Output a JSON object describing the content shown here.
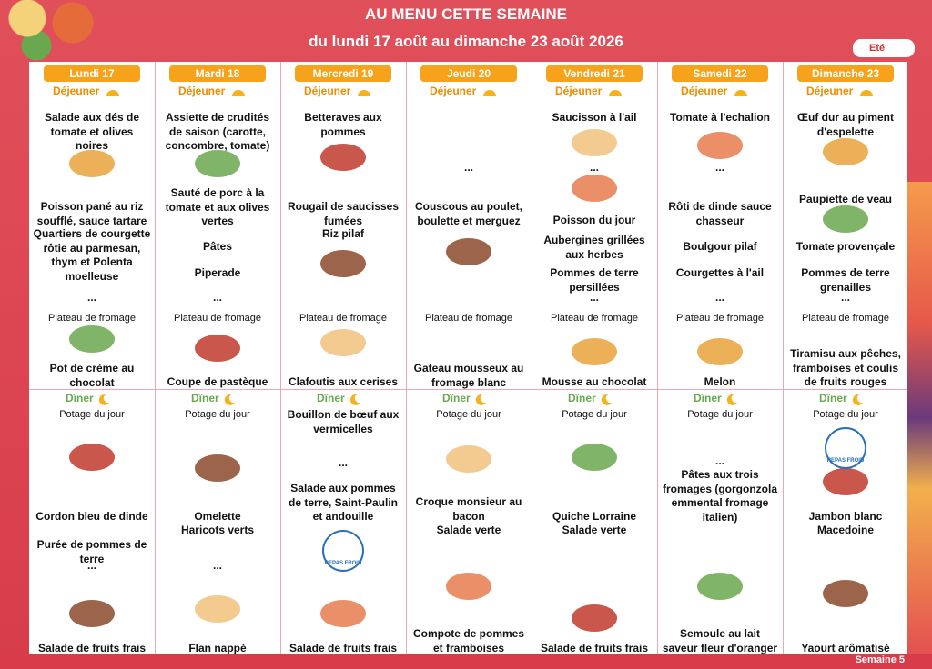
{
  "header": {
    "title": "AU MENU CETTE SEMAINE",
    "subtitle": "du lundi 17 août au dimanche 23 août 2026",
    "season": "Eté"
  },
  "badge": "REPAS FROID",
  "footer": "Semaine 5",
  "days": [
    {
      "name": "Lundi 17",
      "lunch": {
        "label": "Déjeuner",
        "items": [
          "Salade aux dés de tomate et olives noires",
          "Poisson pané au riz soufflé, sauce tartare",
          "Quartiers de courgette rôtie au parmesan, thym et Polenta moelleuse",
          "...",
          "Plateau de fromage",
          "Pot de crème au chocolat"
        ]
      },
      "dinner": {
        "label": "Dîner",
        "items": [
          "Potage du jour",
          "Cordon bleu de dinde",
          "Purée de pommes de terre",
          "...",
          "Salade de fruits frais"
        ]
      }
    },
    {
      "name": "Mardi 18",
      "lunch": {
        "label": "Déjeuner",
        "items": [
          "Assiette de crudités de saison (carotte, concombre, tomate)",
          "Sauté de porc à la tomate et aux olives vertes",
          "Pâtes",
          "Piperade",
          "...",
          "Plateau de fromage",
          "Coupe de pastèque"
        ]
      },
      "dinner": {
        "label": "Dîner",
        "items": [
          "Potage du jour",
          "Omelette",
          "Haricots verts",
          "...",
          "Flan nappé"
        ]
      }
    },
    {
      "name": "Mercredi 19",
      "lunch": {
        "label": "Déjeuner",
        "items": [
          "Betteraves aux pommes",
          "Rougail de saucisses fumées",
          "Riz pilaf",
          "Plateau de fromage",
          "Clafoutis aux cerises"
        ]
      },
      "dinner": {
        "label": "Dîner",
        "items": [
          "Bouillon de bœuf aux vermicelles",
          "...",
          "Salade aux pommes de terre, Saint-Paulin et andouille",
          "Salade de fruits frais"
        ]
      }
    },
    {
      "name": "Jeudi 20",
      "lunch": {
        "label": "Déjeuner",
        "items": [
          "...",
          "Couscous au poulet, boulette et merguez",
          "Plateau de fromage",
          "Gateau mousseux au fromage blanc"
        ]
      },
      "dinner": {
        "label": "Dîner",
        "items": [
          "Potage du jour",
          "Croque monsieur au bacon",
          "Salade verte",
          "Compote de pommes et framboises"
        ]
      }
    },
    {
      "name": "Vendredi 21",
      "lunch": {
        "label": "Déjeuner",
        "items": [
          "Saucisson à l'ail",
          "...",
          "Poisson du jour",
          "Aubergines grillées aux herbes",
          "Pommes de terre persillées",
          "...",
          "Plateau de fromage",
          "Mousse au chocolat"
        ]
      },
      "dinner": {
        "label": "Dîner",
        "items": [
          "Potage du jour",
          "Quiche Lorraine",
          "Salade verte",
          "Salade de fruits frais"
        ]
      }
    },
    {
      "name": "Samedi 22",
      "lunch": {
        "label": "Déjeuner",
        "items": [
          "Tomate à l'echalion",
          "...",
          "Rôti de dinde sauce chasseur",
          "Boulgour pilaf",
          "Courgettes à l'ail",
          "...",
          "Plateau de fromage",
          "Melon"
        ]
      },
      "dinner": {
        "label": "Dîner",
        "items": [
          "Potage du jour",
          "...",
          "Pâtes aux trois fromages (gorgonzola emmental fromage italien)",
          "Semoule au lait saveur fleur d'oranger"
        ]
      }
    },
    {
      "name": "Dimanche 23",
      "lunch": {
        "label": "Déjeuner",
        "items": [
          "Œuf dur au piment d'espelette",
          "Paupiette de veau",
          "Tomate provençale",
          "Pommes de terre grenailles",
          "...",
          "Plateau de fromage",
          "Tiramisu aux pêches, framboises et coulis de fruits rouges"
        ]
      },
      "dinner": {
        "label": "Dîner",
        "items": [
          "Potage du jour",
          "Jambon blanc",
          "Macedoine",
          "Yaourt arômatisé"
        ]
      }
    }
  ]
}
